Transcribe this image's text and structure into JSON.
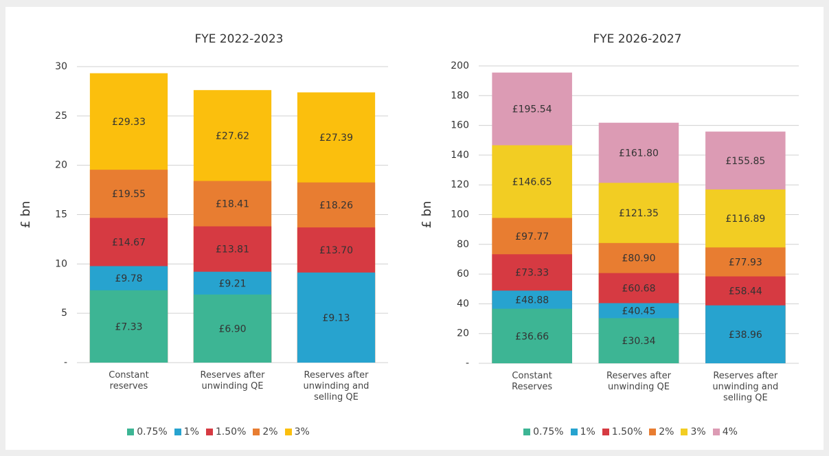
{
  "chart_data": [
    {
      "type": "bar",
      "title": "FYE 2022-2023",
      "y_label": "£ bn",
      "categories": [
        "Constant reserves",
        "Reserves after unwinding QE",
        "Reserves after unwinding and selling QE"
      ],
      "series": [
        {
          "name": "0.75%",
          "color": "#3db594",
          "values": [
            7.33,
            6.9,
            null
          ],
          "value_labels": [
            "£7.33",
            "£6.90",
            null
          ]
        },
        {
          "name": "1%",
          "color": "#27a3cf",
          "values": [
            9.78,
            9.21,
            9.13
          ],
          "value_labels": [
            "£9.78",
            "£9.21",
            "£9.13"
          ]
        },
        {
          "name": "1.50%",
          "color": "#d63a42",
          "values": [
            14.67,
            13.81,
            13.7
          ],
          "value_labels": [
            "£14.67",
            "£13.81",
            "£13.70"
          ]
        },
        {
          "name": "2%",
          "color": "#e87d31",
          "values": [
            19.55,
            18.41,
            18.26
          ],
          "value_labels": [
            "£19.55",
            "£18.41",
            "£18.26"
          ]
        },
        {
          "name": "3%",
          "color": "#fbbf0d",
          "values": [
            29.33,
            27.62,
            27.39
          ],
          "value_labels": [
            "£29.33",
            "£27.62",
            "£27.39"
          ]
        }
      ],
      "ylim": [
        0,
        30
      ],
      "yticks": [
        {
          "value": 0,
          "label": "-"
        },
        5,
        10,
        15,
        20,
        25,
        30
      ],
      "grid": true,
      "legend": "bottom"
    },
    {
      "type": "bar",
      "title": "FYE 2026-2027",
      "y_label": "£ bn",
      "categories": [
        "Constant Reserves",
        "Reserves after unwinding QE",
        "Reserves after unwinding and selling QE"
      ],
      "series": [
        {
          "name": "0.75%",
          "color": "#3db594",
          "values": [
            36.66,
            30.34,
            null
          ],
          "value_labels": [
            "£36.66",
            "£30.34",
            null
          ]
        },
        {
          "name": "1%",
          "color": "#27a3cf",
          "values": [
            48.88,
            40.45,
            38.96
          ],
          "value_labels": [
            "£48.88",
            "£40.45",
            "£38.96"
          ]
        },
        {
          "name": "1.50%",
          "color": "#d63a42",
          "values": [
            73.33,
            60.68,
            58.44
          ],
          "value_labels": [
            "£73.33",
            "£60.68",
            "£58.44"
          ]
        },
        {
          "name": "2%",
          "color": "#e87d31",
          "values": [
            97.77,
            80.9,
            77.93
          ],
          "value_labels": [
            "£97.77",
            "£80.90",
            "£77.93"
          ]
        },
        {
          "name": "3%",
          "color": "#f2cd23",
          "values": [
            146.65,
            121.35,
            116.89
          ],
          "value_labels": [
            "£146.65",
            "£121.35",
            "£116.89"
          ]
        },
        {
          "name": "4%",
          "color": "#dc9bb4",
          "values": [
            195.54,
            161.8,
            155.85
          ],
          "value_labels": [
            "£195.54",
            "£161.80",
            "£155.85"
          ]
        }
      ],
      "ylim": [
        0,
        200
      ],
      "yticks": [
        {
          "value": 0,
          "label": "-"
        },
        20,
        40,
        60,
        80,
        100,
        120,
        140,
        160,
        180,
        200
      ],
      "grid": true,
      "legend": "bottom"
    }
  ]
}
